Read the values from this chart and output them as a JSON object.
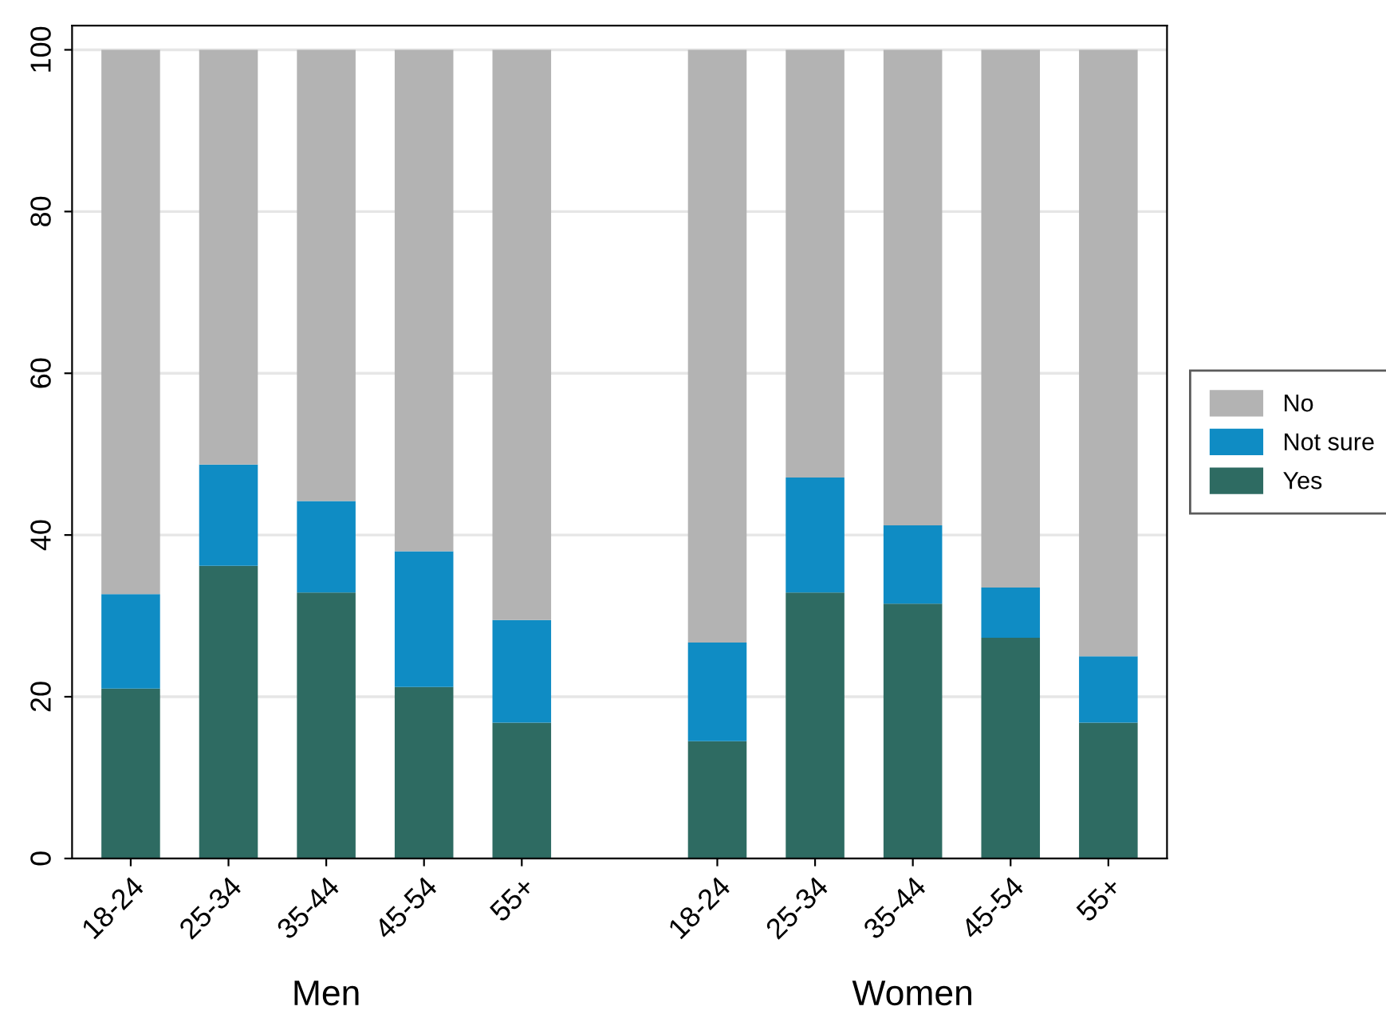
{
  "chart_data": {
    "type": "bar",
    "stacked": true,
    "categories": [
      "18-24",
      "25-34",
      "35-44",
      "45-54",
      "55+",
      null,
      "18-24",
      "25-34",
      "35-44",
      "45-54",
      "55+"
    ],
    "series": [
      {
        "name": "Yes",
        "color": "#2e6b62",
        "values": [
          21.0,
          36.2,
          32.9,
          21.2,
          16.8,
          null,
          14.5,
          32.9,
          31.5,
          27.3,
          16.8
        ]
      },
      {
        "name": "Not sure",
        "color": "#0f8cc4",
        "values": [
          11.7,
          12.5,
          11.3,
          16.8,
          12.7,
          null,
          12.2,
          14.2,
          9.7,
          6.2,
          8.2
        ]
      },
      {
        "name": "No",
        "color": "#b3b3b3",
        "values": [
          67.3,
          51.3,
          55.8,
          62.0,
          70.5,
          null,
          73.3,
          52.9,
          58.8,
          66.5,
          75.0
        ]
      }
    ],
    "ylim": [
      0,
      103
    ],
    "yticks": [
      0,
      20,
      40,
      60,
      80,
      100
    ],
    "grid": "y",
    "legend": "right",
    "annotations": [
      "Men",
      "Women"
    ]
  }
}
